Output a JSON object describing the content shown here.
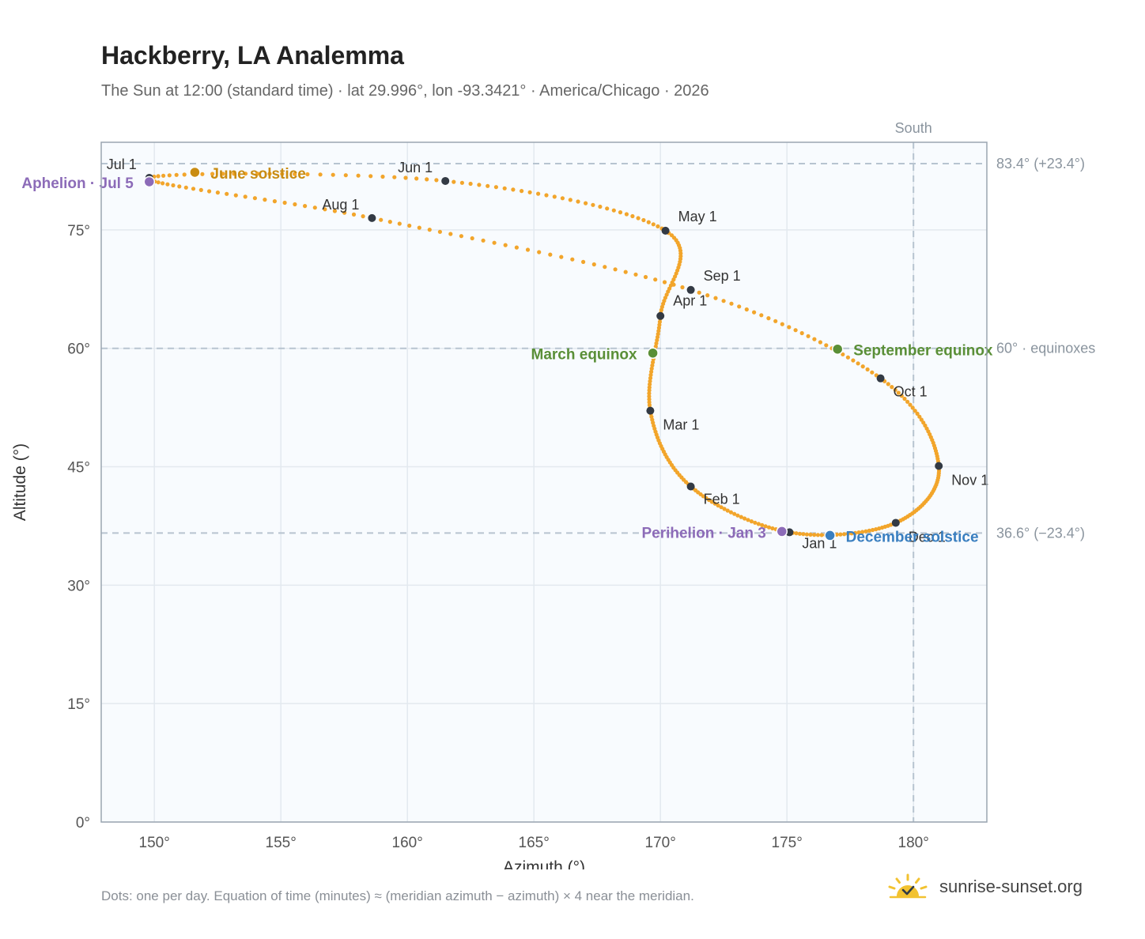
{
  "header": {
    "title": "Hackberry, LA Analemma",
    "subtitle": "The Sun at 12:00 (standard time) · lat 29.996°, lon -93.3421° · America/Chicago · 2026"
  },
  "footer": {
    "note": "Dots: one per day. Equation of time (minutes) ≈ (meridian azimuth − azimuth) × 4 near the meridian.",
    "brand": "sunrise-sunset.org"
  },
  "colors": {
    "path": "#f2a52b",
    "month_dot": "#333a44",
    "solstice_june": "#c98c12",
    "solstice_december": "#3a7fc0",
    "equinox": "#5a8f37",
    "apsis": "#8c6bb8",
    "plot_bg": "#f8fbfe",
    "grid": "#e3e9ef",
    "ref_line": "#b7c4d0"
  },
  "chart_data": {
    "type": "scatter",
    "title": "Hackberry, LA Analemma",
    "xlabel": "Azimuth (°)",
    "ylabel": "Altitude (°)",
    "xlim": [
      147.9,
      182.9
    ],
    "ylim": [
      0,
      86.1
    ],
    "xticks": [
      150,
      155,
      160,
      165,
      170,
      175,
      180
    ],
    "yticks": [
      0,
      15,
      30,
      45,
      60,
      75
    ],
    "x_tick_labels": [
      "150°",
      "155°",
      "160°",
      "165°",
      "170°",
      "175°",
      "180°"
    ],
    "y_tick_labels": [
      "0°",
      "15°",
      "30°",
      "45°",
      "60°",
      "75°"
    ],
    "grid": true,
    "reference_lines": {
      "south": {
        "azimuth": 180,
        "label": "South"
      },
      "altitudes": [
        {
          "value": 83.4,
          "label": "83.4° (+23.4°)"
        },
        {
          "value": 60.0,
          "label": "60° · equinoxes"
        },
        {
          "value": 36.6,
          "label": "36.6° (−23.4°)"
        }
      ]
    },
    "month_markers": [
      {
        "label": "Jan 1",
        "az": 175.1,
        "alt": 36.7
      },
      {
        "label": "Feb 1",
        "az": 171.2,
        "alt": 42.5
      },
      {
        "label": "Mar 1",
        "az": 169.6,
        "alt": 52.1
      },
      {
        "label": "Apr 1",
        "az": 170.0,
        "alt": 64.1
      },
      {
        "label": "May 1",
        "az": 170.2,
        "alt": 74.9
      },
      {
        "label": "Jun 1",
        "az": 161.5,
        "alt": 81.2
      },
      {
        "label": "Jul 1",
        "az": 149.8,
        "alt": 81.6
      },
      {
        "label": "Aug 1",
        "az": 158.6,
        "alt": 76.5
      },
      {
        "label": "Sep 1",
        "az": 171.2,
        "alt": 67.4
      },
      {
        "label": "Oct 1",
        "az": 178.7,
        "alt": 56.2
      },
      {
        "label": "Nov 1",
        "az": 181.0,
        "alt": 45.1
      },
      {
        "label": "Dec 1",
        "az": 179.3,
        "alt": 37.9
      }
    ],
    "events": [
      {
        "label": "June solstice",
        "az": 151.6,
        "alt": 82.3,
        "kind": "solstice_june"
      },
      {
        "label": "December solstice",
        "az": 176.7,
        "alt": 36.3,
        "kind": "solstice_december"
      },
      {
        "label": "March equinox",
        "az": 169.7,
        "alt": 59.4,
        "kind": "equinox"
      },
      {
        "label": "September equinox",
        "az": 177.0,
        "alt": 59.9,
        "kind": "equinox"
      },
      {
        "label": "Aphelion · Jul 5",
        "az": 149.8,
        "alt": 81.1,
        "kind": "apsis"
      },
      {
        "label": "Perihelion · Jan 3",
        "az": 174.8,
        "alt": 36.8,
        "kind": "apsis"
      }
    ]
  }
}
